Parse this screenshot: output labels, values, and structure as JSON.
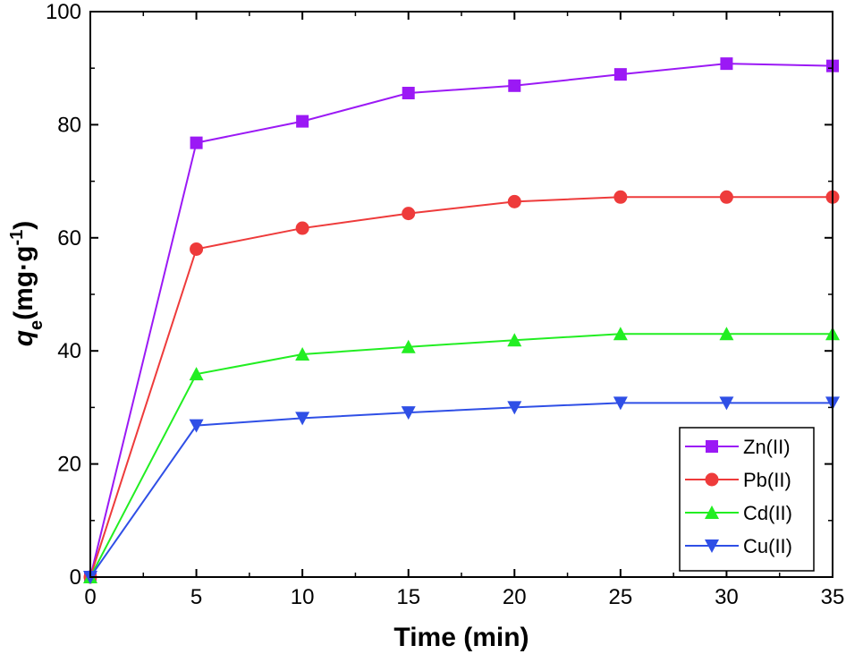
{
  "chart_data": {
    "type": "line",
    "title": "",
    "xlabel": "Time (min)",
    "ylabel": {
      "q": "q",
      "sub": "e",
      "units": "(mg·g",
      "sup": "-1",
      "close": ")"
    },
    "xlim": [
      0,
      35
    ],
    "ylim": [
      0,
      100
    ],
    "xticks": [
      0,
      5,
      10,
      15,
      20,
      25,
      30,
      35
    ],
    "yticks": [
      0,
      20,
      40,
      60,
      80,
      100
    ],
    "legend_position": "bottom-right",
    "x": [
      0,
      5,
      10,
      15,
      20,
      25,
      30,
      35
    ],
    "series": [
      {
        "name": "Zn(II)",
        "color": "#9b19f5",
        "marker": "square",
        "values": [
          0,
          76.8,
          80.6,
          85.6,
          86.9,
          88.9,
          90.8,
          90.4
        ]
      },
      {
        "name": "Pb(II)",
        "color": "#ee3b3b",
        "marker": "circle",
        "values": [
          0,
          58.0,
          61.7,
          64.3,
          66.4,
          67.2,
          67.2,
          67.2
        ]
      },
      {
        "name": "Cd(II)",
        "color": "#22ee22",
        "marker": "triangle-up",
        "values": [
          0,
          35.9,
          39.4,
          40.7,
          41.9,
          43.0,
          43.0,
          43.0
        ]
      },
      {
        "name": "Cu(II)",
        "color": "#2f4fe6",
        "marker": "triangle-down",
        "values": [
          0,
          26.8,
          28.1,
          29.1,
          30.0,
          30.8,
          30.8,
          30.8
        ]
      }
    ]
  }
}
